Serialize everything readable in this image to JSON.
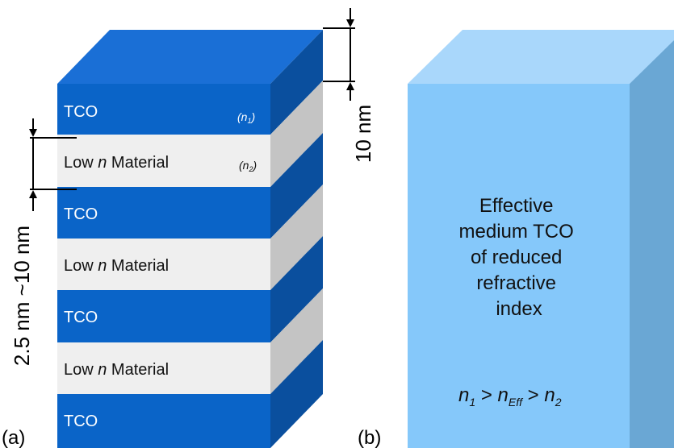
{
  "panel_a": {
    "label": "(a)",
    "layers": [
      {
        "kind": "tco",
        "text": "TCO",
        "index": "(n",
        "index_sub": "1",
        "index_close": ")"
      },
      {
        "kind": "low",
        "text_pre": "Low ",
        "text_n": "n",
        "text_post": " Material",
        "index": "(n",
        "index_sub": "2",
        "index_close": ")"
      },
      {
        "kind": "tco",
        "text": "TCO"
      },
      {
        "kind": "low",
        "text_pre": "Low ",
        "text_n": "n",
        "text_post": " Material"
      },
      {
        "kind": "tco",
        "text": "TCO"
      },
      {
        "kind": "low",
        "text_pre": "Low ",
        "text_n": "n",
        "text_post": " Material"
      },
      {
        "kind": "tco",
        "text": "TCO"
      }
    ],
    "dim_left": "2.5 nm ~10 nm",
    "dim_right": "10 nm"
  },
  "panel_b": {
    "label": "(b)",
    "description_lines": [
      "Effective",
      "medium TCO",
      "of reduced",
      "refractive",
      "index"
    ],
    "relation": {
      "n1": "n",
      "n1_sub": "1",
      "gt1": " > ",
      "neff": "n",
      "neff_sub": "Eff",
      "gt2": " > ",
      "n2": "n",
      "n2_sub": "2"
    }
  },
  "colors": {
    "tco_front": "#0a64c8",
    "tco_top": "#1a6fd6",
    "tco_side": "#0a4f9e",
    "low_front": "#efefef",
    "low_side": "#c4c4c4",
    "eff_front": "#85c8fa",
    "eff_top": "#a9d7fb",
    "eff_side": "#6aa7d4"
  }
}
